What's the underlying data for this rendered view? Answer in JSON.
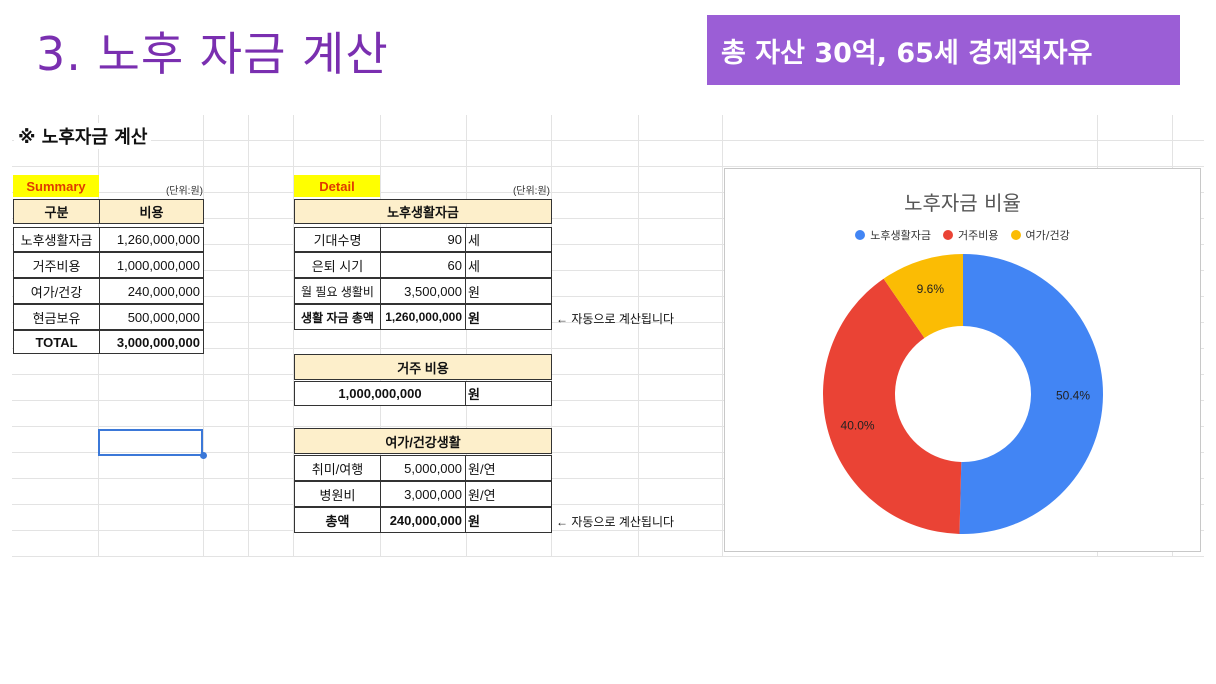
{
  "slide": {
    "title": "3. 노후 자금 계산",
    "badge": "총 자산 30억, 65세 경제적자유"
  },
  "sheet": {
    "header": "※ 노후자금 계산",
    "summary": {
      "label": "Summary",
      "unit": "(단위:원)",
      "col_headers": [
        "구분",
        "비용"
      ],
      "rows": [
        {
          "name": "노후생활자금",
          "value": "1,260,000,000"
        },
        {
          "name": "거주비용",
          "value": "1,000,000,000"
        },
        {
          "name": "여가/건강",
          "value": "240,000,000"
        },
        {
          "name": "현금보유",
          "value": "500,000,000"
        },
        {
          "name": "TOTAL",
          "value": "3,000,000,000"
        }
      ]
    },
    "detail": {
      "label": "Detail",
      "unit": "(단위:원)",
      "living": {
        "title": "노후생활자금",
        "rows": [
          {
            "name": "기대수명",
            "value": "90",
            "unit": "세"
          },
          {
            "name": "은퇴 시기",
            "value": "60",
            "unit": "세"
          },
          {
            "name": "월 필요 생활비",
            "value": "3,500,000",
            "unit": "원"
          },
          {
            "name": "생활 자금 총액",
            "value": "1,260,000,000",
            "unit": "원"
          }
        ],
        "note": "← 자동으로 계산됩니다"
      },
      "housing": {
        "title": "거주 비용",
        "value": "1,000,000,000",
        "unit": "원"
      },
      "leisure": {
        "title": "여가/건강생활",
        "rows": [
          {
            "name": "취미/여행",
            "value": "5,000,000",
            "unit": "원/연"
          },
          {
            "name": "병원비",
            "value": "3,000,000",
            "unit": "원/연"
          },
          {
            "name": "총액",
            "value": "240,000,000",
            "unit": "원"
          }
        ],
        "note": "← 자동으로 계산됩니다"
      }
    }
  },
  "chart_data": {
    "type": "pie",
    "title": "노후자금 비율",
    "donut": true,
    "legend_position": "top",
    "categories": [
      "노후생활자금",
      "거주비용",
      "여가/건강"
    ],
    "values": [
      50.4,
      40.0,
      9.6
    ],
    "labels": [
      "50.4%",
      "40.0%",
      "9.6%"
    ],
    "colors": [
      "#4285f4",
      "#ea4335",
      "#fbbc04"
    ]
  }
}
